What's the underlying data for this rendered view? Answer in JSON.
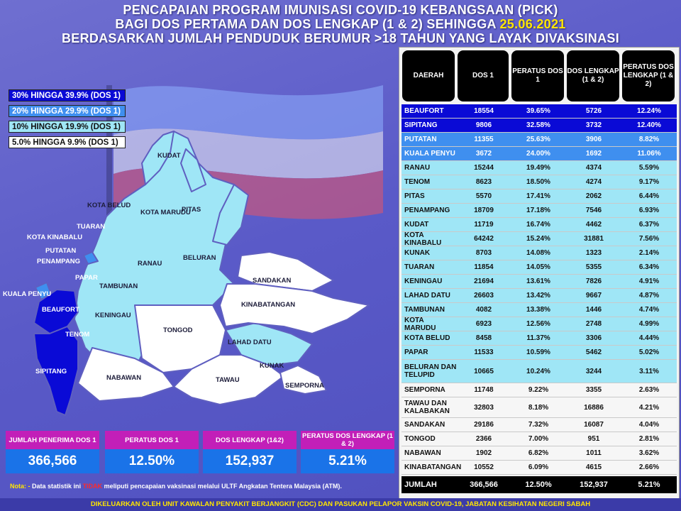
{
  "title": {
    "line1": "PENCAPAIAN PROGRAM IMUNISASI COVID-19 KEBANGSAAN (PICK)",
    "line2": "BAGI DOS PERTAMA DAN DOS LENGKAP (1 & 2) SEHINGGA",
    "date": "25.06.2021",
    "line3": "BERDASARKAN JUMLAH PENDUDUK BERUMUR >18 TAHUN YANG LAYAK DIVAKSINASI"
  },
  "legend": [
    {
      "label": "30% HINGGA 39.9% (DOS 1)",
      "color": "#0a0ad6"
    },
    {
      "label": "20% HINGGA 29.9% (DOS 1)",
      "color": "#3f8fef"
    },
    {
      "label": "10% HINGGA 19.9% (DOS 1)",
      "color": "#9fe6f6"
    },
    {
      "label": "5.0% HINGGA 9.9% (DOS 1)",
      "color": "#ffffff"
    }
  ],
  "map_labels": [
    "KUDAT",
    "PITAS",
    "KOTA BELUD",
    "KOTA MARUDU",
    "TUARAN",
    "KOTA KINABALU",
    "PUTATAN",
    "PENAMPANG",
    "RANAU",
    "BELURAN",
    "PAPAR",
    "SANDAKAN",
    "KUALA PENYU",
    "TAMBUNAN",
    "BEAUFORT",
    "KINABATANGAN",
    "KENINGAU",
    "TENOM",
    "TONGOD",
    "LAHAD DATU",
    "SIPITANG",
    "KUNAK",
    "NABAWAN",
    "TAWAU",
    "SEMPORNA"
  ],
  "table": {
    "headers": [
      "DAERAH",
      "DOS 1",
      "PERATUS DOS 1",
      "DOS LENGKAP (1 & 2)",
      "PERATUS DOS LENGKAP (1 & 2)"
    ],
    "rows": [
      {
        "d": "BEAUFORT",
        "v1": "18554",
        "p1": "39.65%",
        "v2": "5726",
        "p2": "12.24%",
        "band": "b1"
      },
      {
        "d": "SIPITANG",
        "v1": "9806",
        "p1": "32.58%",
        "v2": "3732",
        "p2": "12.40%",
        "band": "b1"
      },
      {
        "d": "PUTATAN",
        "v1": "11355",
        "p1": "25.63%",
        "v2": "3906",
        "p2": "8.82%",
        "band": "b2"
      },
      {
        "d": "KUALA PENYU",
        "v1": "3672",
        "p1": "24.00%",
        "v2": "1692",
        "p2": "11.06%",
        "band": "b2"
      },
      {
        "d": "RANAU",
        "v1": "15244",
        "p1": "19.49%",
        "v2": "4374",
        "p2": "5.59%",
        "band": "b3"
      },
      {
        "d": "TENOM",
        "v1": "8623",
        "p1": "18.50%",
        "v2": "4274",
        "p2": "9.17%",
        "band": "b3"
      },
      {
        "d": "PITAS",
        "v1": "5570",
        "p1": "17.41%",
        "v2": "2062",
        "p2": "6.44%",
        "band": "b3"
      },
      {
        "d": "PENAMPANG",
        "v1": "18709",
        "p1": "17.18%",
        "v2": "7546",
        "p2": "6.93%",
        "band": "b3"
      },
      {
        "d": "KUDAT",
        "v1": "11719",
        "p1": "16.74%",
        "v2": "4462",
        "p2": "6.37%",
        "band": "b3"
      },
      {
        "d": "KOTA KINABALU",
        "v1": "64242",
        "p1": "15.24%",
        "v2": "31881",
        "p2": "7.56%",
        "band": "b3"
      },
      {
        "d": "KUNAK",
        "v1": "8703",
        "p1": "14.08%",
        "v2": "1323",
        "p2": "2.14%",
        "band": "b3"
      },
      {
        "d": "TUARAN",
        "v1": "11854",
        "p1": "14.05%",
        "v2": "5355",
        "p2": "6.34%",
        "band": "b3"
      },
      {
        "d": "KENINGAU",
        "v1": "21694",
        "p1": "13.61%",
        "v2": "7826",
        "p2": "4.91%",
        "band": "b3"
      },
      {
        "d": "LAHAD DATU",
        "v1": "26603",
        "p1": "13.42%",
        "v2": "9667",
        "p2": "4.87%",
        "band": "b3"
      },
      {
        "d": "TAMBUNAN",
        "v1": "4082",
        "p1": "13.38%",
        "v2": "1446",
        "p2": "4.74%",
        "band": "b3"
      },
      {
        "d": "KOTA MARUDU",
        "v1": "6923",
        "p1": "12.56%",
        "v2": "2748",
        "p2": "4.99%",
        "band": "b3"
      },
      {
        "d": "KOTA BELUD",
        "v1": "8458",
        "p1": "11.37%",
        "v2": "3306",
        "p2": "4.44%",
        "band": "b3"
      },
      {
        "d": "PAPAR",
        "v1": "11533",
        "p1": "10.59%",
        "v2": "5462",
        "p2": "5.02%",
        "band": "b3"
      },
      {
        "d": "BELURAN DAN TELUPID",
        "v1": "10665",
        "p1": "10.24%",
        "v2": "3244",
        "p2": "3.11%",
        "band": "b3",
        "tall": "tall"
      },
      {
        "d": "SEMPORNA",
        "v1": "11748",
        "p1": "9.22%",
        "v2": "3355",
        "p2": "2.63%",
        "band": "b4"
      },
      {
        "d": "TAWAU DAN KALABAKAN",
        "v1": "32803",
        "p1": "8.18%",
        "v2": "16886",
        "p2": "4.21%",
        "band": "b4",
        "tall": "tall2"
      },
      {
        "d": "SANDAKAN",
        "v1": "29186",
        "p1": "7.32%",
        "v2": "16087",
        "p2": "4.04%",
        "band": "b4"
      },
      {
        "d": "TONGOD",
        "v1": "2366",
        "p1": "7.00%",
        "v2": "951",
        "p2": "2.81%",
        "band": "b4"
      },
      {
        "d": "NABAWAN",
        "v1": "1902",
        "p1": "6.82%",
        "v2": "1011",
        "p2": "3.62%",
        "band": "b4"
      },
      {
        "d": "KINABATANGAN",
        "v1": "10552",
        "p1": "6.09%",
        "v2": "4615",
        "p2": "2.66%",
        "band": "b4"
      }
    ],
    "total": {
      "d": "JUMLAH",
      "v1": "366,566",
      "p1": "12.50%",
      "v2": "152,937",
      "p2": "5.21%"
    }
  },
  "summary": [
    {
      "label": "JUMLAH PENERIMA DOS 1",
      "value": "366,566"
    },
    {
      "label": "PERATUS DOS 1",
      "value": "12.50%"
    },
    {
      "label": "DOS LENGKAP (1&2)",
      "value": "152,937"
    },
    {
      "label": "PERATUS DOS LENGKAP (1 & 2)",
      "value": "5.21%"
    }
  ],
  "note": {
    "prefix": "Nota: -",
    "part1": "Data statistik ini",
    "highlight": "TIDAK",
    "part2": "meliputi pencapaian vaksinasi melalui ULTF Angkatan Tentera Malaysia (ATM)."
  },
  "footer": "DIKELUARKAN OLEH UNIT KAWALAN PENYAKIT BERJANGKIT (CDC) DAN PASUKAN PELAPOR VAKSIN COVID-19, JABATAN KESIHATAN NEGERI SABAH"
}
